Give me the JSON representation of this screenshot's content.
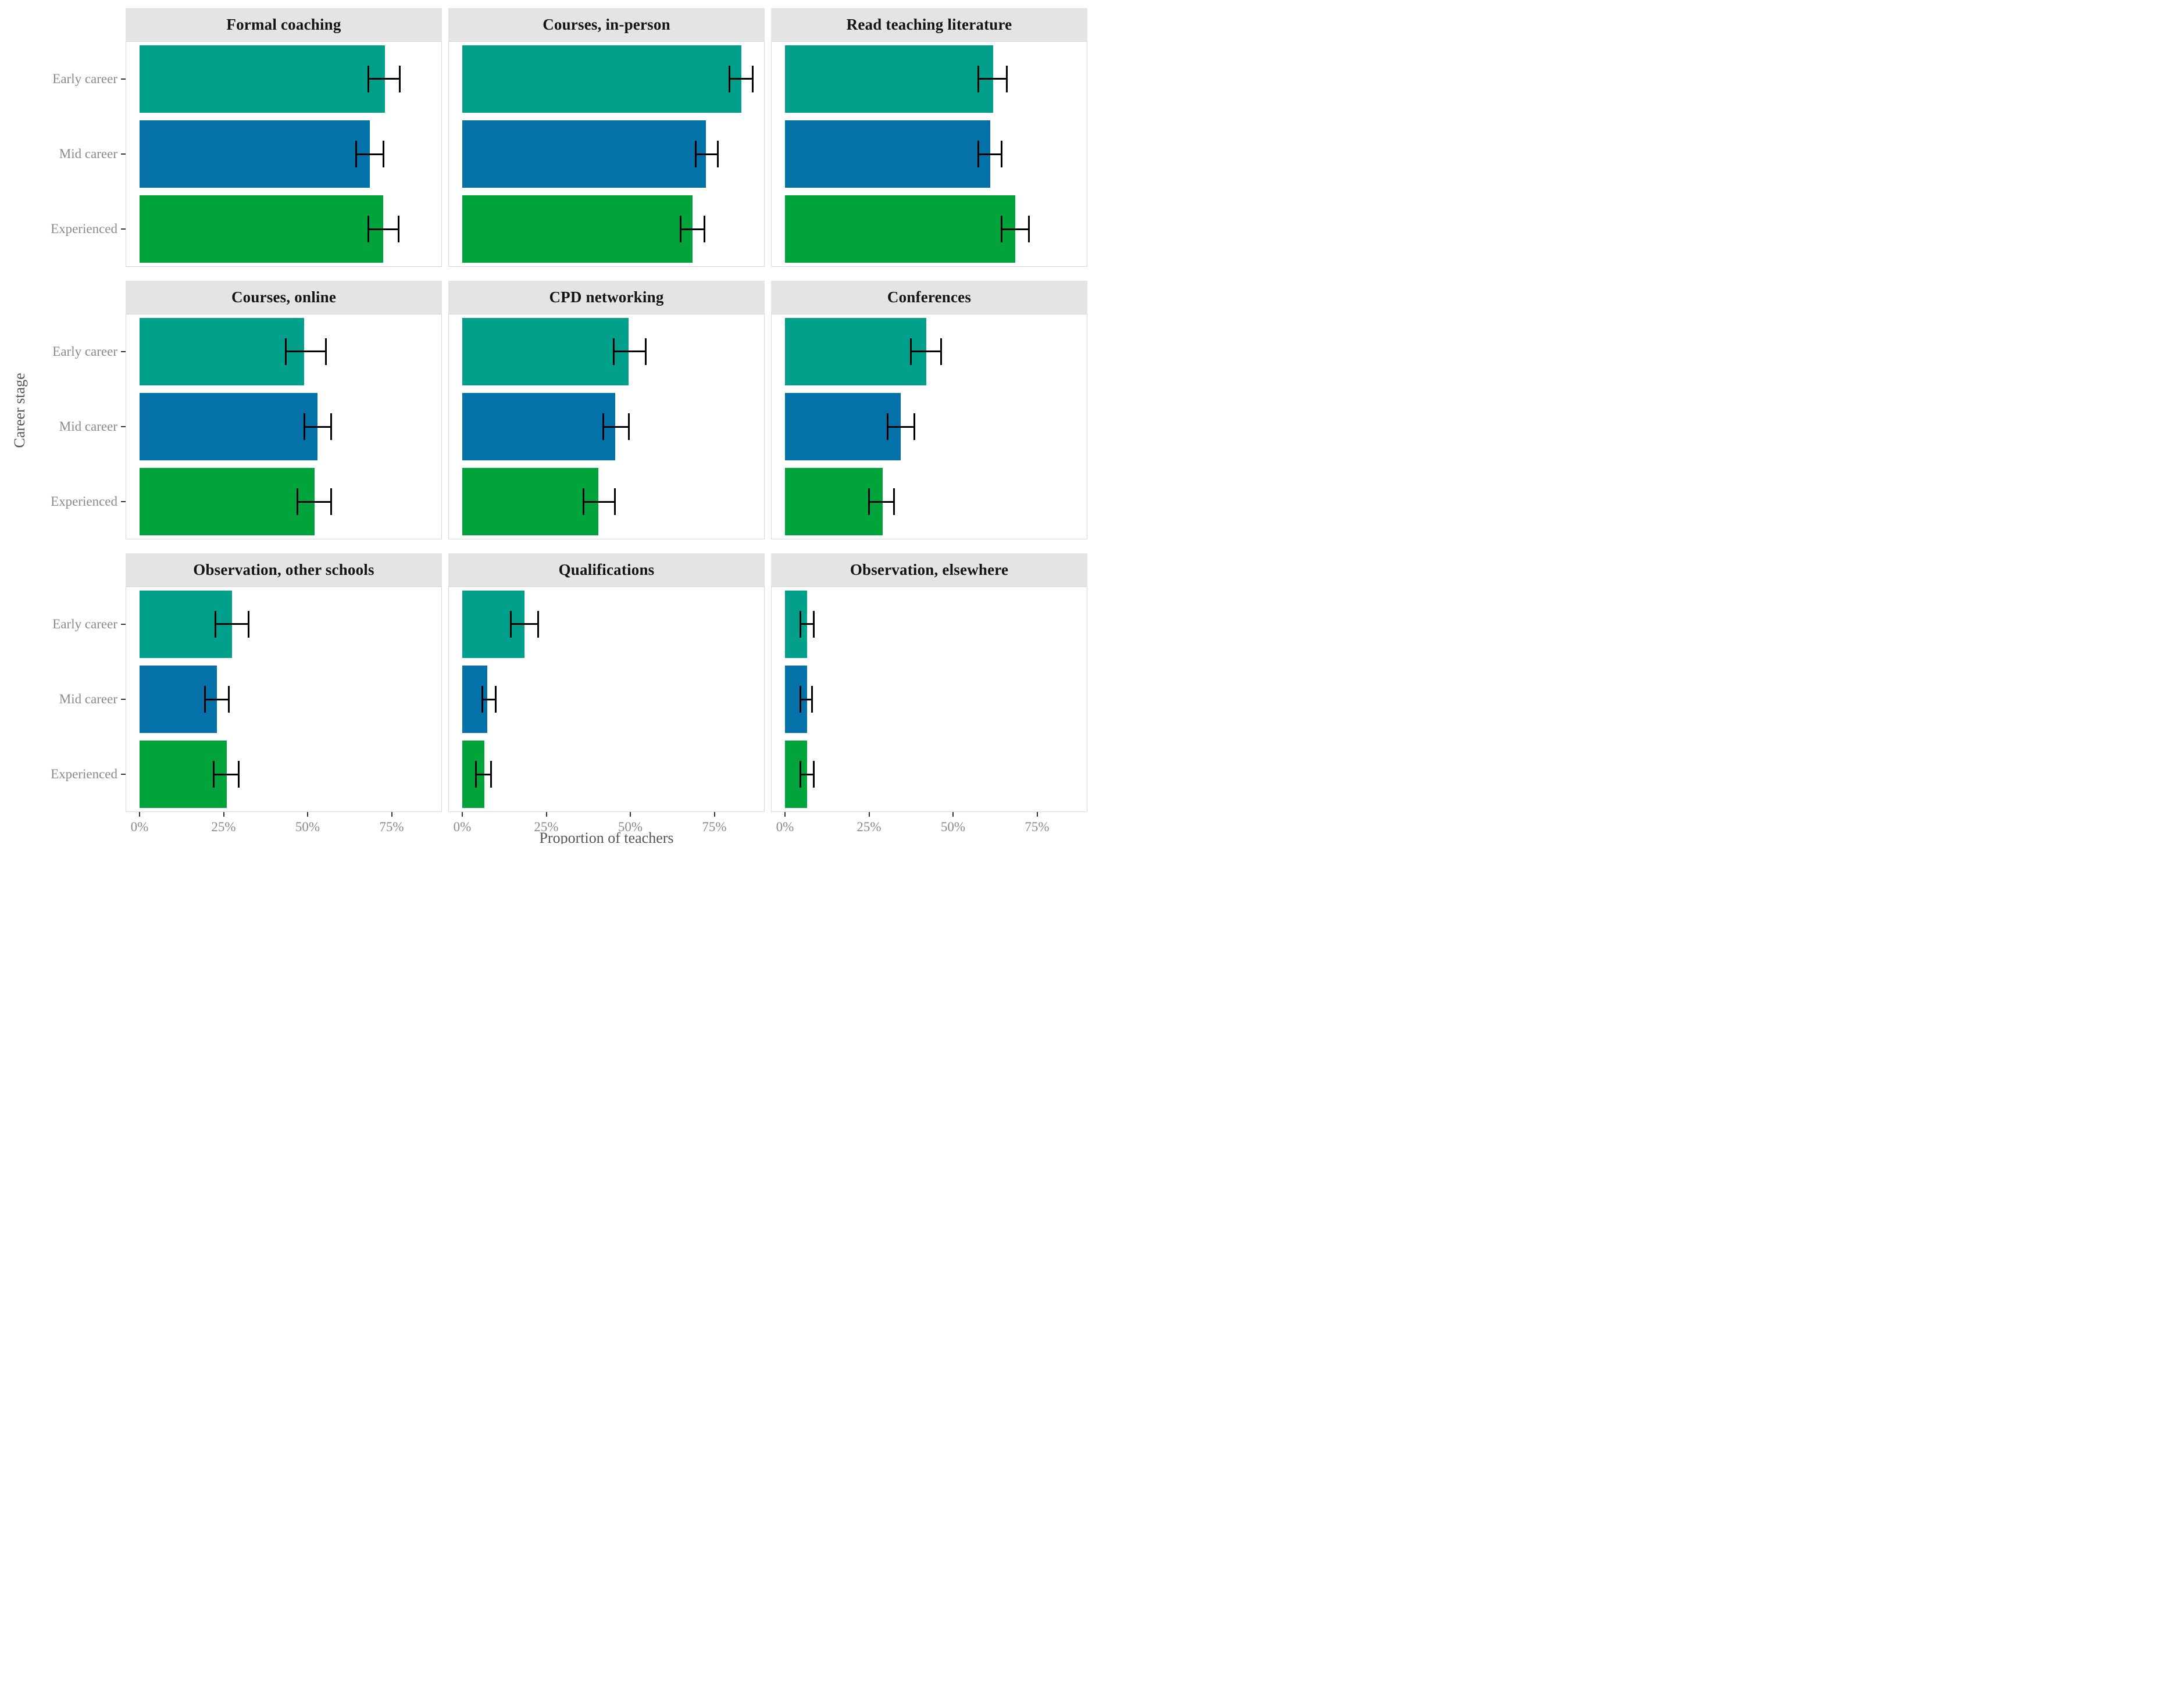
{
  "chart_data": {
    "type": "bar",
    "orientation": "horizontal",
    "layout": "facet-grid-3x3",
    "xlabel": "Proportion of teachers",
    "ylabel": "Career stage",
    "categories": [
      "Early career",
      "Mid career",
      "Experienced"
    ],
    "x_ticks": [
      "0%",
      "25%",
      "50%",
      "75%"
    ],
    "x_tick_values": [
      0,
      25,
      50,
      75
    ],
    "x_range": [
      -4.1,
      90.3
    ],
    "grid": "off",
    "legend": "none",
    "error_bars": true,
    "series_colors": {
      "Early career": "#00A08A",
      "Mid career": "#0571A9",
      "Experienced": "#00A43B"
    },
    "strip_background": "#e4e4e4",
    "panel_border": "#d9d9d9",
    "facets": [
      {
        "title": "Formal coaching",
        "bars": [
          {
            "category": "Early career",
            "value": 73,
            "ci_low": 68,
            "ci_high": 77.5
          },
          {
            "category": "Mid career",
            "value": 68.5,
            "ci_low": 64.5,
            "ci_high": 72.5
          },
          {
            "category": "Experienced",
            "value": 72.5,
            "ci_low": 68,
            "ci_high": 77
          }
        ]
      },
      {
        "title": "Courses, in-person",
        "bars": [
          {
            "category": "Early career",
            "value": 83,
            "ci_low": 79.5,
            "ci_high": 86.5
          },
          {
            "category": "Mid career",
            "value": 72.5,
            "ci_low": 69.5,
            "ci_high": 76
          },
          {
            "category": "Experienced",
            "value": 68.5,
            "ci_low": 65,
            "ci_high": 72
          }
        ]
      },
      {
        "title": "Read teaching literature",
        "bars": [
          {
            "category": "Early career",
            "value": 62,
            "ci_low": 57.5,
            "ci_high": 66
          },
          {
            "category": "Mid career",
            "value": 61,
            "ci_low": 57.5,
            "ci_high": 64.5
          },
          {
            "category": "Experienced",
            "value": 68.5,
            "ci_low": 64.5,
            "ci_high": 72.5
          }
        ]
      },
      {
        "title": "Courses, online",
        "bars": [
          {
            "category": "Early career",
            "value": 49,
            "ci_low": 43.5,
            "ci_high": 55.5
          },
          {
            "category": "Mid career",
            "value": 53,
            "ci_low": 49,
            "ci_high": 57
          },
          {
            "category": "Experienced",
            "value": 52,
            "ci_low": 47,
            "ci_high": 57
          }
        ]
      },
      {
        "title": "CPD networking",
        "bars": [
          {
            "category": "Early career",
            "value": 49.5,
            "ci_low": 45,
            "ci_high": 54.5
          },
          {
            "category": "Mid career",
            "value": 45.5,
            "ci_low": 42,
            "ci_high": 49.5
          },
          {
            "category": "Experienced",
            "value": 40.5,
            "ci_low": 36,
            "ci_high": 45.5
          }
        ]
      },
      {
        "title": "Conferences",
        "bars": [
          {
            "category": "Early career",
            "value": 42,
            "ci_low": 37.5,
            "ci_high": 46.5
          },
          {
            "category": "Mid career",
            "value": 34.5,
            "ci_low": 30.5,
            "ci_high": 38.5
          },
          {
            "category": "Experienced",
            "value": 29,
            "ci_low": 25,
            "ci_high": 32.5
          }
        ]
      },
      {
        "title": "Observation, other schools",
        "bars": [
          {
            "category": "Early career",
            "value": 27.5,
            "ci_low": 22.5,
            "ci_high": 32.5
          },
          {
            "category": "Mid career",
            "value": 23,
            "ci_low": 19.5,
            "ci_high": 26.5
          },
          {
            "category": "Experienced",
            "value": 26,
            "ci_low": 22,
            "ci_high": 29.5
          }
        ]
      },
      {
        "title": "Qualifications",
        "bars": [
          {
            "category": "Early career",
            "value": 18.5,
            "ci_low": 14.5,
            "ci_high": 22.5
          },
          {
            "category": "Mid career",
            "value": 7.5,
            "ci_low": 6,
            "ci_high": 10
          },
          {
            "category": "Experienced",
            "value": 6.5,
            "ci_low": 4,
            "ci_high": 8.5
          }
        ]
      },
      {
        "title": "Observation, elsewhere",
        "bars": [
          {
            "category": "Early career",
            "value": 6.5,
            "ci_low": 4.5,
            "ci_high": 8.5
          },
          {
            "category": "Mid career",
            "value": 6.5,
            "ci_low": 4.5,
            "ci_high": 8
          },
          {
            "category": "Experienced",
            "value": 6.5,
            "ci_low": 4.5,
            "ci_high": 8.5
          }
        ]
      }
    ]
  }
}
